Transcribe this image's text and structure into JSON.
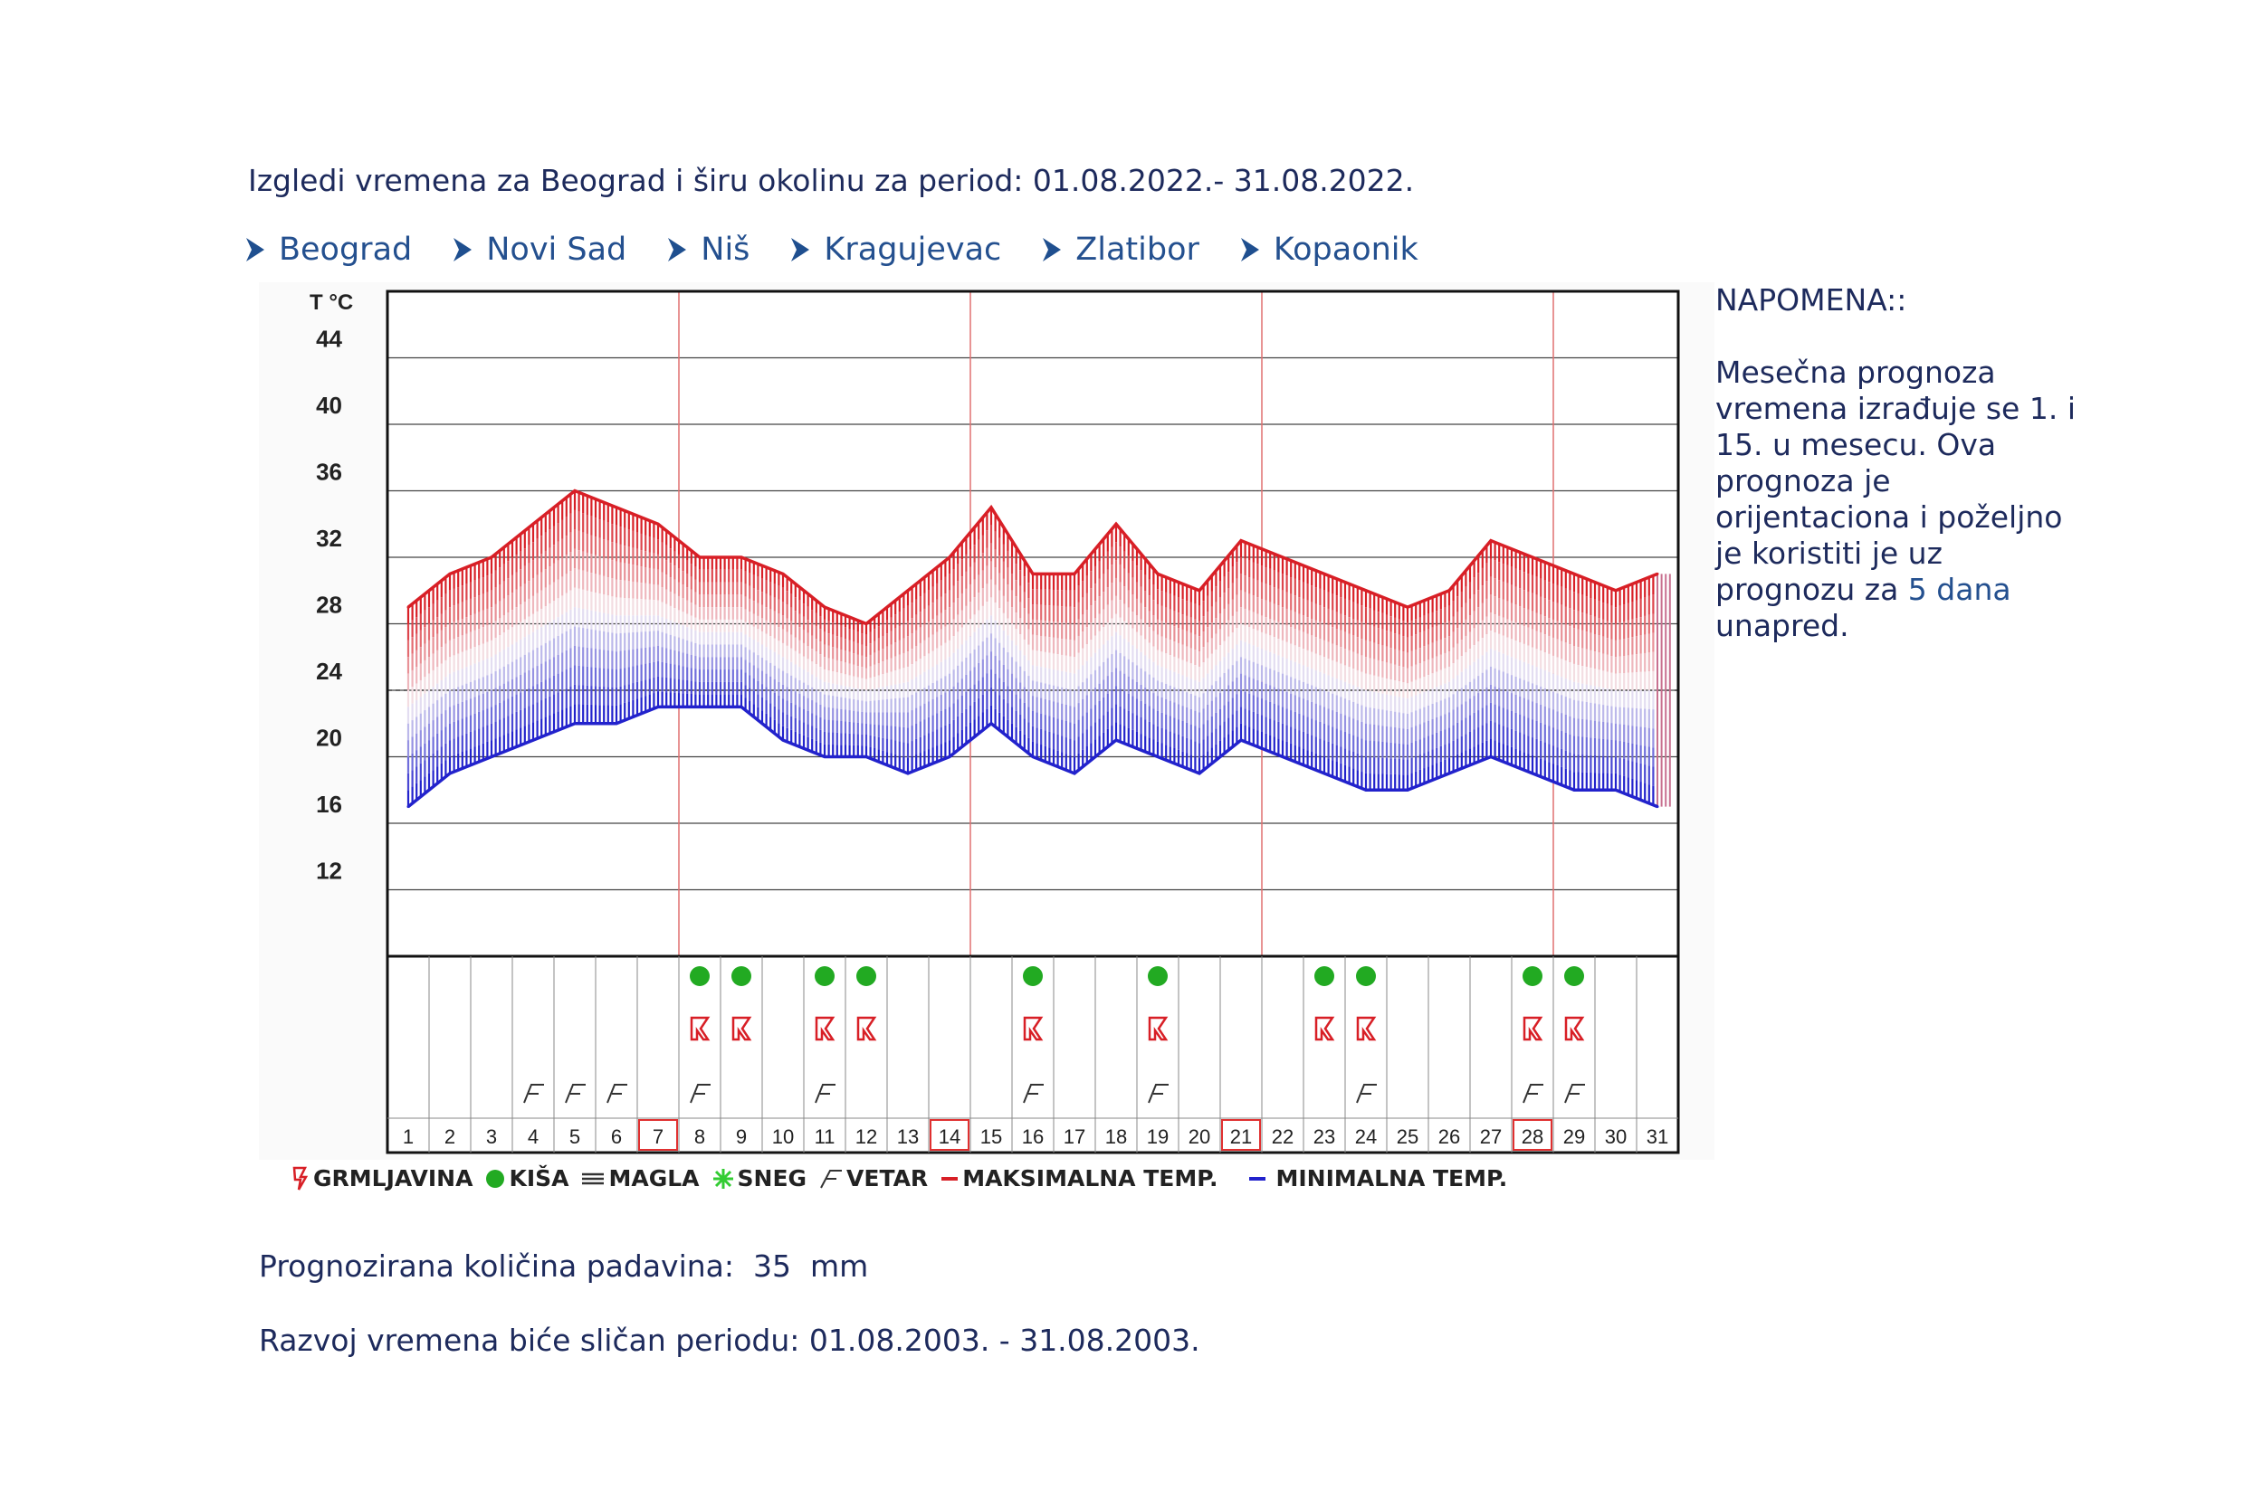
{
  "intro": "Izgledi vremena za Beograd i širu okolinu za period: 01.08.2022.- 31.08.2022.",
  "cities": [
    "Beograd",
    "Novi Sad",
    "Niš",
    "Kragujevac",
    "Zlatibor",
    "Kopaonik"
  ],
  "note": {
    "title": "NAPOMENA::",
    "text_before": "Mesečna prognoza vremena izrađuje se 1. i 15. u mesecu. Ova prognoza je orijentaciona i poželjno je koristiti je uz prognozu za ",
    "link": "5 dana",
    "text_after": " unapred."
  },
  "legend": {
    "thunder": "GRMLJAVINA",
    "rain": "KIŠA",
    "fog": "MAGLA",
    "snow": "SNEG",
    "wind": "VETAR",
    "max": "MAKSIMALNA TEMP.",
    "min": "MINIMALNA TEMP."
  },
  "precip": {
    "label": "Prognozirana količina padavina:",
    "value": "35",
    "unit": "mm"
  },
  "period": "Razvoj vremena biće sličan periodu: 01.08.2003. - 31.08.2003.",
  "colors": {
    "max": "#d81f26",
    "min": "#2222cc",
    "rain": "#22aa22",
    "grid_red": "#e07070",
    "link": "#24508f"
  },
  "chart_data": {
    "type": "line",
    "ylabel": "T °C",
    "yticks": [
      12,
      16,
      20,
      24,
      28,
      32,
      36,
      40,
      44
    ],
    "ylim": [
      8,
      48
    ],
    "days": [
      1,
      2,
      3,
      4,
      5,
      6,
      7,
      8,
      9,
      10,
      11,
      12,
      13,
      14,
      15,
      16,
      17,
      18,
      19,
      20,
      21,
      22,
      23,
      24,
      25,
      26,
      27,
      28,
      29,
      30,
      31
    ],
    "sundays": [
      7,
      14,
      21,
      28
    ],
    "series": [
      {
        "name": "MAKSIMALNA TEMP.",
        "values": [
          29,
          31,
          32,
          34,
          36,
          35,
          34,
          32,
          32,
          31,
          29,
          28,
          30,
          32,
          35,
          31,
          31,
          34,
          31,
          30,
          33,
          32,
          31,
          30,
          29,
          30,
          33,
          32,
          31,
          30,
          31
        ]
      },
      {
        "name": "MINIMALNA TEMP.",
        "values": [
          17,
          19,
          20,
          21,
          22,
          22,
          23,
          23,
          23,
          21,
          20,
          20,
          19,
          20,
          22,
          20,
          19,
          21,
          20,
          19,
          21,
          20,
          19,
          18,
          18,
          19,
          20,
          19,
          18,
          18,
          17
        ]
      }
    ],
    "rain_days": [
      8,
      9,
      11,
      12,
      16,
      19,
      23,
      24,
      28,
      29
    ],
    "thunder_days": [
      8,
      9,
      11,
      12,
      16,
      19,
      23,
      24,
      28,
      29
    ],
    "wind_days": [
      4,
      5,
      6,
      8,
      11,
      16,
      19,
      24,
      28,
      29
    ]
  }
}
